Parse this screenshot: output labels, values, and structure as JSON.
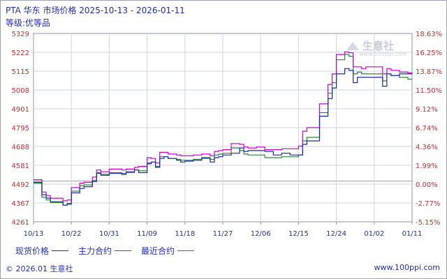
{
  "header": {
    "title": "PTA 华东 市场价格 2025-10-13 - 2026-01-11",
    "subtitle": "等级:优等品"
  },
  "watermark": {
    "brand": "生意社",
    "url": "www.100ppi.com"
  },
  "footer": {
    "copyright": "© 2026.01 生意社",
    "site": "www.100ppi.com"
  },
  "colors": {
    "spot": "#1a2aa8",
    "main": "#d000d0",
    "recent": "#2a8a3a",
    "grid": "#cfd6e6",
    "zero_line": "#9aa0aa"
  },
  "chart_data": {
    "type": "line",
    "title": "PTA 华东 市场价格 2025-10-13 - 2026-01-11",
    "subtitle": "等级:优等品",
    "y_left_ticks": [
      "5329",
      "5222",
      "5115",
      "5008",
      "4901",
      "4795",
      "4688",
      "4581",
      "4492",
      "4367",
      "4261"
    ],
    "y_right_ticks": [
      "18.63%",
      "16.25%",
      "13.87%",
      "11.50%",
      "9.12%",
      "6.74%",
      "4.36%",
      "1.99%",
      "0.00%",
      "-2.77%",
      "-5.15%"
    ],
    "ylim": [
      4261,
      5329
    ],
    "baseline": 4492,
    "x_tick_labels": [
      "10/13",
      "10/22",
      "10/31",
      "11/09",
      "11/18",
      "11/27",
      "12/06",
      "12/15",
      "12/24",
      "01/02",
      "01/11"
    ],
    "x_range": [
      "2025-10-13",
      "2026-01-11"
    ],
    "grid": true,
    "legend_position": "bottom-left",
    "series": [
      {
        "name": "现货价格",
        "color": "#1a2aa8",
        "dates": [
          "2025-10-13",
          "2025-10-15",
          "2025-10-16",
          "2025-10-17",
          "2025-10-18",
          "2025-10-20",
          "2025-10-21",
          "2025-10-22",
          "2025-10-24",
          "2025-10-25",
          "2025-10-27",
          "2025-10-28",
          "2025-10-29",
          "2025-10-31",
          "2025-11-03",
          "2025-11-04",
          "2025-11-05",
          "2025-11-06",
          "2025-11-07",
          "2025-11-09",
          "2025-11-10",
          "2025-11-11",
          "2025-11-12",
          "2025-11-13",
          "2025-11-14",
          "2025-11-16",
          "2025-11-17",
          "2025-11-18",
          "2025-11-20",
          "2025-11-22",
          "2025-11-24",
          "2025-11-25",
          "2025-11-26",
          "2025-11-27",
          "2025-11-29",
          "2025-12-01",
          "2025-12-02",
          "2025-12-03",
          "2025-12-05",
          "2025-12-07",
          "2025-12-09",
          "2025-12-10",
          "2025-12-11",
          "2025-12-13",
          "2025-12-15",
          "2025-12-16",
          "2025-12-17",
          "2025-12-19",
          "2025-12-20",
          "2025-12-22",
          "2025-12-23",
          "2025-12-24",
          "2025-12-26",
          "2025-12-27",
          "2025-12-28",
          "2025-12-29",
          "2025-12-30",
          "2025-12-31",
          "2026-01-02",
          "2026-01-03",
          "2026-01-04",
          "2026-01-05",
          "2026-01-06",
          "2026-01-08",
          "2026-01-09",
          "2026-01-10",
          "2026-01-11"
        ],
        "values": [
          4485,
          4415,
          4395,
          4375,
          4375,
          4355,
          4365,
          4425,
          4450,
          4460,
          4490,
          4535,
          4525,
          4535,
          4530,
          4545,
          4545,
          4555,
          4540,
          4590,
          4600,
          4570,
          4620,
          4630,
          4620,
          4610,
          4600,
          4605,
          4610,
          4625,
          4600,
          4625,
          4630,
          4640,
          4650,
          4680,
          4660,
          4665,
          4665,
          4660,
          4640,
          4640,
          4650,
          4640,
          4640,
          4700,
          4720,
          4720,
          4860,
          4960,
          5020,
          5100,
          5130,
          5120,
          5050,
          5080,
          5080,
          5080,
          5080,
          5080,
          5030,
          5100,
          5090,
          5100,
          5100,
          5100,
          5100
        ]
      },
      {
        "name": "主力合约",
        "color": "#d000d0",
        "dates": [
          "2025-10-13",
          "2025-10-15",
          "2025-10-16",
          "2025-10-17",
          "2025-10-18",
          "2025-10-20",
          "2025-10-21",
          "2025-10-22",
          "2025-10-24",
          "2025-10-25",
          "2025-10-27",
          "2025-10-28",
          "2025-10-29",
          "2025-10-31",
          "2025-11-03",
          "2025-11-04",
          "2025-11-05",
          "2025-11-06",
          "2025-11-07",
          "2025-11-09",
          "2025-11-10",
          "2025-11-11",
          "2025-11-12",
          "2025-11-13",
          "2025-11-14",
          "2025-11-16",
          "2025-11-17",
          "2025-11-18",
          "2025-11-20",
          "2025-11-22",
          "2025-11-24",
          "2025-11-25",
          "2025-11-26",
          "2025-11-27",
          "2025-11-29",
          "2025-12-01",
          "2025-12-02",
          "2025-12-03",
          "2025-12-05",
          "2025-12-07",
          "2025-12-09",
          "2025-12-10",
          "2025-12-11",
          "2025-12-13",
          "2025-12-15",
          "2025-12-16",
          "2025-12-17",
          "2025-12-19",
          "2025-12-20",
          "2025-12-22",
          "2025-12-23",
          "2025-12-24",
          "2025-12-26",
          "2025-12-27",
          "2025-12-28",
          "2025-12-29",
          "2025-12-30",
          "2025-12-31",
          "2026-01-02",
          "2026-01-03",
          "2026-01-04",
          "2026-01-05",
          "2026-01-06",
          "2026-01-08",
          "2026-01-09",
          "2026-01-10",
          "2026-01-11"
        ],
        "values": [
          4500,
          4430,
          4410,
          4395,
          4395,
          4380,
          4385,
          4455,
          4480,
          4485,
          4515,
          4555,
          4545,
          4560,
          4555,
          4560,
          4560,
          4570,
          4575,
          4625,
          4620,
          4595,
          4655,
          4655,
          4645,
          4640,
          4635,
          4635,
          4640,
          4645,
          4635,
          4660,
          4665,
          4670,
          4705,
          4700,
          4685,
          4680,
          4685,
          4670,
          4670,
          4670,
          4675,
          4675,
          4690,
          4775,
          4795,
          4795,
          4930,
          5040,
          5100,
          5210,
          5225,
          5220,
          5140,
          5140,
          5130,
          5140,
          5140,
          5140,
          5100,
          5130,
          5120,
          5110,
          5110,
          5105,
          5100
        ]
      },
      {
        "name": "最近合约",
        "color": "#2a8a3a",
        "dates": [
          "2025-10-13",
          "2025-10-15",
          "2025-10-16",
          "2025-10-17",
          "2025-10-18",
          "2025-10-20",
          "2025-10-21",
          "2025-10-22",
          "2025-10-24",
          "2025-10-25",
          "2025-10-27",
          "2025-10-28",
          "2025-10-29",
          "2025-10-31",
          "2025-11-03",
          "2025-11-04",
          "2025-11-05",
          "2025-11-06",
          "2025-11-07",
          "2025-11-09",
          "2025-11-10",
          "2025-11-11",
          "2025-11-12",
          "2025-11-13",
          "2025-11-14",
          "2025-11-16",
          "2025-11-17",
          "2025-11-18",
          "2025-11-20",
          "2025-11-22",
          "2025-11-24",
          "2025-11-25",
          "2025-11-26",
          "2025-11-27",
          "2025-11-29",
          "2025-12-01",
          "2025-12-02",
          "2025-12-03",
          "2025-12-05",
          "2025-12-07",
          "2025-12-09",
          "2025-12-10",
          "2025-12-11",
          "2025-12-13",
          "2025-12-15",
          "2025-12-16",
          "2025-12-17",
          "2025-12-19",
          "2025-12-20",
          "2025-12-22",
          "2025-12-23",
          "2025-12-24",
          "2025-12-26",
          "2025-12-27",
          "2025-12-28",
          "2025-12-29",
          "2025-12-30",
          "2025-12-31",
          "2026-01-02",
          "2026-01-03",
          "2026-01-04",
          "2026-01-05",
          "2026-01-06",
          "2026-01-08",
          "2026-01-09",
          "2026-01-10",
          "2026-01-11"
        ],
        "values": [
          4480,
          4400,
          4385,
          4370,
          4370,
          4355,
          4360,
          4435,
          4465,
          4470,
          4495,
          4540,
          4530,
          4540,
          4535,
          4540,
          4540,
          4555,
          4550,
          4595,
          4600,
          4575,
          4630,
          4630,
          4620,
          4615,
          4610,
          4610,
          4615,
          4620,
          4615,
          4640,
          4645,
          4650,
          4680,
          4665,
          4645,
          4640,
          4640,
          4625,
          4625,
          4625,
          4630,
          4630,
          4640,
          4720,
          4740,
          4740,
          4880,
          4990,
          5050,
          5180,
          5210,
          5200,
          5100,
          5110,
          5100,
          5100,
          5100,
          5100,
          5060,
          5100,
          5090,
          5080,
          5080,
          5070,
          5070
        ]
      }
    ]
  }
}
